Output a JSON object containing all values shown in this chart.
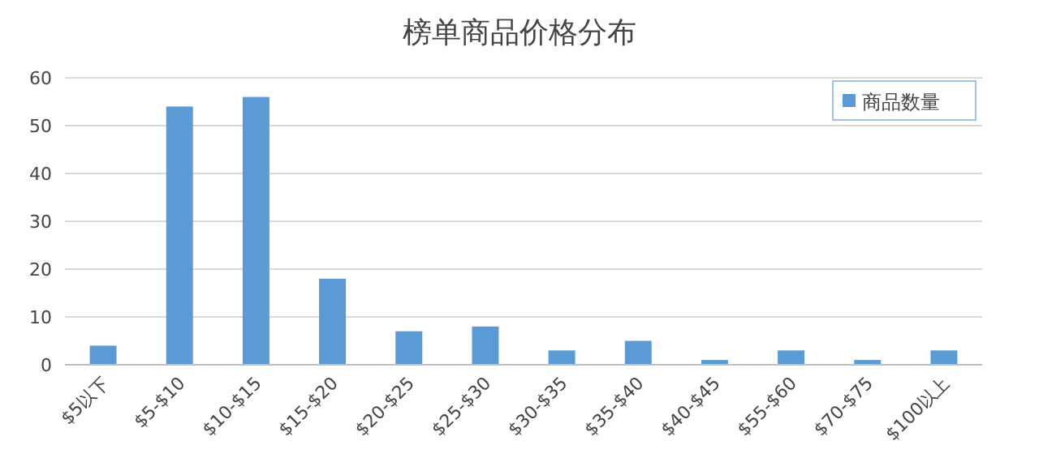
{
  "chart_data": {
    "type": "bar",
    "title": "榜单商品价格分布",
    "categories": [
      "$5以下",
      "$5-$10",
      "$10-$15",
      "$15-$20",
      "$20-$25",
      "$25-$30",
      "$30-$35",
      "$35-$40",
      "$40-$45",
      "$55-$60",
      "$70-$75",
      "$100以上"
    ],
    "series": [
      {
        "name": "商品数量",
        "color": "#5b9bd5",
        "values": [
          4,
          54,
          56,
          18,
          7,
          8,
          3,
          5,
          1,
          3,
          1,
          3
        ]
      }
    ],
    "ylim": [
      0,
      60
    ],
    "yticks": [
      0,
      10,
      20,
      30,
      40,
      50,
      60
    ],
    "grid": "y",
    "legend": "top right"
  }
}
